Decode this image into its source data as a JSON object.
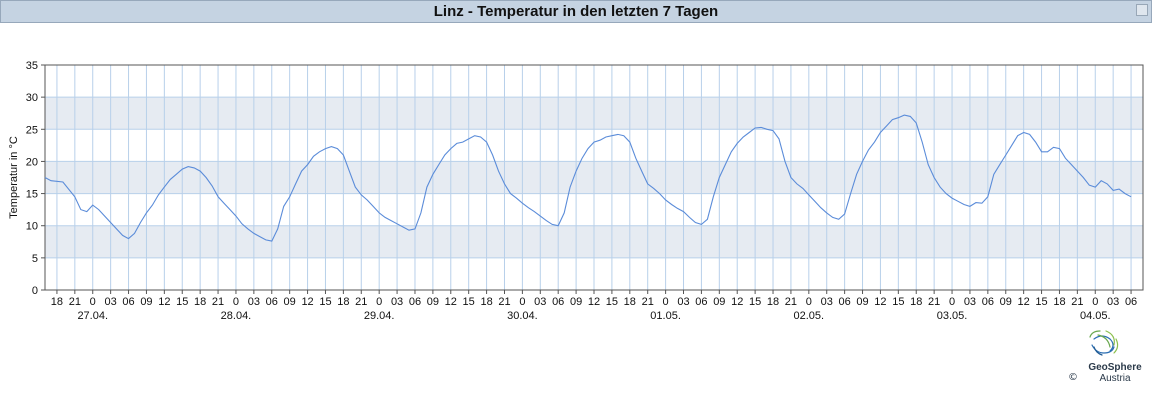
{
  "window": {
    "title": "Linz - Temperatur in den letzten 7 Tagen"
  },
  "branding": {
    "logo_icon": "geosphere-logo-icon",
    "name": "GeoSphere",
    "sub": "Austria",
    "copyright": "©"
  },
  "colors": {
    "line": "#5b8cd9",
    "band": "#e6ebf2",
    "grid": "#b8d0ea",
    "title_bg": "#c5d3e2"
  },
  "chart_data": {
    "type": "line",
    "title": "Linz - Temperatur in den letzten 7 Tagen",
    "ylabel": "Temperatur in °C",
    "xlabel": "",
    "ylim": [
      0,
      35
    ],
    "yticks": [
      0,
      5,
      10,
      15,
      20,
      25,
      30,
      35
    ],
    "grid": true,
    "x_unit": "hours",
    "xlim": [
      "26.04. 16:00",
      "04.05. 08:00"
    ],
    "hour_tick_labels": [
      "18",
      "21",
      "0",
      "03",
      "06",
      "09",
      "12",
      "15",
      "18",
      "21",
      "0",
      "03",
      "06",
      "09",
      "12",
      "15",
      "18",
      "21",
      "0",
      "03",
      "06",
      "09",
      "12",
      "15",
      "18",
      "21",
      "0",
      "03",
      "06",
      "09",
      "12",
      "15",
      "18",
      "21",
      "0",
      "03",
      "06",
      "09",
      "12",
      "15",
      "18",
      "21",
      "0",
      "03",
      "06",
      "09",
      "12",
      "15",
      "18",
      "21",
      "0",
      "03",
      "06",
      "09",
      "12",
      "15",
      "18",
      "21",
      "0",
      "03",
      "06"
    ],
    "date_labels": [
      "27.04.",
      "28.04.",
      "29.04.",
      "30.04.",
      "01.05.",
      "02.05.",
      "03.05.",
      "04.05."
    ],
    "series": [
      {
        "points": [
          [
            "26.04. 16:00",
            17.5
          ],
          [
            "26.04. 17:00",
            17.0
          ],
          [
            "26.04. 19:00",
            16.8
          ],
          [
            "26.04. 21:00",
            14.5
          ],
          [
            "26.04. 22:00",
            12.5
          ],
          [
            "26.04. 23:00",
            12.2
          ],
          [
            "27.04. 00:00",
            13.2
          ],
          [
            "27.04. 01:00",
            12.5
          ],
          [
            "27.04. 02:00",
            11.5
          ],
          [
            "27.04. 03:00",
            10.5
          ],
          [
            "27.04. 05:00",
            8.5
          ],
          [
            "27.04. 06:00",
            8.0
          ],
          [
            "27.04. 07:00",
            8.8
          ],
          [
            "27.04. 08:00",
            10.5
          ],
          [
            "27.04. 09:00",
            12.0
          ],
          [
            "27.04. 10:00",
            13.2
          ],
          [
            "27.04. 11:00",
            14.8
          ],
          [
            "27.04. 12:00",
            16.0
          ],
          [
            "27.04. 13:00",
            17.2
          ],
          [
            "27.04. 14:00",
            18.0
          ],
          [
            "27.04. 15:00",
            18.8
          ],
          [
            "27.04. 16:00",
            19.2
          ],
          [
            "27.04. 17:00",
            19.0
          ],
          [
            "27.04. 18:00",
            18.5
          ],
          [
            "27.04. 19:00",
            17.5
          ],
          [
            "27.04. 20:00",
            16.2
          ],
          [
            "27.04. 21:00",
            14.5
          ],
          [
            "27.04. 22:00",
            13.5
          ],
          [
            "27.04. 23:00",
            12.5
          ],
          [
            "28.04. 00:00",
            11.5
          ],
          [
            "28.04. 01:00",
            10.3
          ],
          [
            "28.04. 02:00",
            9.5
          ],
          [
            "28.04. 03:00",
            8.8
          ],
          [
            "28.04. 04:00",
            8.3
          ],
          [
            "28.04. 05:00",
            7.8
          ],
          [
            "28.04. 06:00",
            7.6
          ],
          [
            "28.04. 07:00",
            9.5
          ],
          [
            "28.04. 08:00",
            13.0
          ],
          [
            "28.04. 09:00",
            14.5
          ],
          [
            "28.04. 10:00",
            16.5
          ],
          [
            "28.04. 11:00",
            18.5
          ],
          [
            "28.04. 12:00",
            19.5
          ],
          [
            "28.04. 13:00",
            20.8
          ],
          [
            "28.04. 14:00",
            21.5
          ],
          [
            "28.04. 15:00",
            22.0
          ],
          [
            "28.04. 16:00",
            22.3
          ],
          [
            "28.04. 17:00",
            22.0
          ],
          [
            "28.04. 18:00",
            21.0
          ],
          [
            "28.04. 19:00",
            18.5
          ],
          [
            "28.04. 20:00",
            16.0
          ],
          [
            "28.04. 21:00",
            14.8
          ],
          [
            "28.04. 22:00",
            14.0
          ],
          [
            "28.04. 23:00",
            13.0
          ],
          [
            "29.04. 00:00",
            12.0
          ],
          [
            "29.04. 01:00",
            11.3
          ],
          [
            "29.04. 02:00",
            10.8
          ],
          [
            "29.04. 03:00",
            10.3
          ],
          [
            "29.04. 04:00",
            9.8
          ],
          [
            "29.04. 05:00",
            9.3
          ],
          [
            "29.04. 06:00",
            9.5
          ],
          [
            "29.04. 07:00",
            12.0
          ],
          [
            "29.04. 08:00",
            16.0
          ],
          [
            "29.04. 09:00",
            18.0
          ],
          [
            "29.04. 10:00",
            19.5
          ],
          [
            "29.04. 11:00",
            21.0
          ],
          [
            "29.04. 12:00",
            22.0
          ],
          [
            "29.04. 13:00",
            22.8
          ],
          [
            "29.04. 14:00",
            23.0
          ],
          [
            "29.04. 15:00",
            23.5
          ],
          [
            "29.04. 16:00",
            24.0
          ],
          [
            "29.04. 17:00",
            23.8
          ],
          [
            "29.04. 18:00",
            23.0
          ],
          [
            "29.04. 19:00",
            21.0
          ],
          [
            "29.04. 20:00",
            18.5
          ],
          [
            "29.04. 21:00",
            16.5
          ],
          [
            "29.04. 22:00",
            15.0
          ],
          [
            "29.04. 23:00",
            14.3
          ],
          [
            "30.04. 00:00",
            13.5
          ],
          [
            "30.04. 01:00",
            12.8
          ],
          [
            "30.04. 02:00",
            12.2
          ],
          [
            "30.04. 03:00",
            11.5
          ],
          [
            "30.04. 04:00",
            10.8
          ],
          [
            "30.04. 05:00",
            10.2
          ],
          [
            "30.04. 06:00",
            10.0
          ],
          [
            "30.04. 07:00",
            12.0
          ],
          [
            "30.04. 08:00",
            16.0
          ],
          [
            "30.04. 09:00",
            18.5
          ],
          [
            "30.04. 10:00",
            20.5
          ],
          [
            "30.04. 11:00",
            22.0
          ],
          [
            "30.04. 12:00",
            23.0
          ],
          [
            "30.04. 13:00",
            23.3
          ],
          [
            "30.04. 14:00",
            23.8
          ],
          [
            "30.04. 15:00",
            24.0
          ],
          [
            "30.04. 16:00",
            24.2
          ],
          [
            "30.04. 17:00",
            24.0
          ],
          [
            "30.04. 18:00",
            23.0
          ],
          [
            "30.04. 19:00",
            20.5
          ],
          [
            "30.04. 20:00",
            18.5
          ],
          [
            "30.04. 21:00",
            16.5
          ],
          [
            "30.04. 22:00",
            15.8
          ],
          [
            "30.04. 23:00",
            15.0
          ],
          [
            "01.05. 00:00",
            14.0
          ],
          [
            "01.05. 01:00",
            13.3
          ],
          [
            "01.05. 02:00",
            12.7
          ],
          [
            "01.05. 03:00",
            12.2
          ],
          [
            "01.05. 04:00",
            11.3
          ],
          [
            "01.05. 05:00",
            10.5
          ],
          [
            "01.05. 06:00",
            10.2
          ],
          [
            "01.05. 07:00",
            11.0
          ],
          [
            "01.05. 08:00",
            14.5
          ],
          [
            "01.05. 09:00",
            17.5
          ],
          [
            "01.05. 10:00",
            19.5
          ],
          [
            "01.05. 11:00",
            21.5
          ],
          [
            "01.05. 12:00",
            22.8
          ],
          [
            "01.05. 13:00",
            23.8
          ],
          [
            "01.05. 14:00",
            24.5
          ],
          [
            "01.05. 15:00",
            25.2
          ],
          [
            "01.05. 16:00",
            25.3
          ],
          [
            "01.05. 17:00",
            25.0
          ],
          [
            "01.05. 18:00",
            24.8
          ],
          [
            "01.05. 19:00",
            23.5
          ],
          [
            "01.05. 20:00",
            20.0
          ],
          [
            "01.05. 21:00",
            17.5
          ],
          [
            "01.05. 22:00",
            16.5
          ],
          [
            "01.05. 23:00",
            15.8
          ],
          [
            "02.05. 00:00",
            14.8
          ],
          [
            "02.05. 01:00",
            13.8
          ],
          [
            "02.05. 02:00",
            12.8
          ],
          [
            "02.05. 03:00",
            12.0
          ],
          [
            "02.05. 04:00",
            11.3
          ],
          [
            "02.05. 05:00",
            11.0
          ],
          [
            "02.05. 06:00",
            11.8
          ],
          [
            "02.05. 07:00",
            15.0
          ],
          [
            "02.05. 08:00",
            18.0
          ],
          [
            "02.05. 09:00",
            20.0
          ],
          [
            "02.05. 10:00",
            21.8
          ],
          [
            "02.05. 11:00",
            23.0
          ],
          [
            "02.05. 12:00",
            24.5
          ],
          [
            "02.05. 13:00",
            25.5
          ],
          [
            "02.05. 14:00",
            26.5
          ],
          [
            "02.05. 15:00",
            26.8
          ],
          [
            "02.05. 16:00",
            27.2
          ],
          [
            "02.05. 17:00",
            27.0
          ],
          [
            "02.05. 18:00",
            26.0
          ],
          [
            "02.05. 19:00",
            23.0
          ],
          [
            "02.05. 20:00",
            19.5
          ],
          [
            "02.05. 21:00",
            17.5
          ],
          [
            "02.05. 22:00",
            16.0
          ],
          [
            "02.05. 23:00",
            15.0
          ],
          [
            "03.05. 00:00",
            14.3
          ],
          [
            "03.05. 01:00",
            13.8
          ],
          [
            "03.05. 02:00",
            13.3
          ],
          [
            "03.05. 03:00",
            13.0
          ],
          [
            "03.05. 04:00",
            13.6
          ],
          [
            "03.05. 05:00",
            13.5
          ],
          [
            "03.05. 06:00",
            14.5
          ],
          [
            "03.05. 07:00",
            18.0
          ],
          [
            "03.05. 08:00",
            19.5
          ],
          [
            "03.05. 09:00",
            21.0
          ],
          [
            "03.05. 10:00",
            22.5
          ],
          [
            "03.05. 11:00",
            24.0
          ],
          [
            "03.05. 12:00",
            24.5
          ],
          [
            "03.05. 13:00",
            24.2
          ],
          [
            "03.05. 14:00",
            23.0
          ],
          [
            "03.05. 15:00",
            21.5
          ],
          [
            "03.05. 16:00",
            21.5
          ],
          [
            "03.05. 17:00",
            22.2
          ],
          [
            "03.05. 18:00",
            22.0
          ],
          [
            "03.05. 19:00",
            20.5
          ],
          [
            "03.05. 20:00",
            19.5
          ],
          [
            "03.05. 21:00",
            18.5
          ],
          [
            "03.05. 22:00",
            17.5
          ],
          [
            "03.05. 23:00",
            16.3
          ],
          [
            "04.05. 00:00",
            16.0
          ],
          [
            "04.05. 01:00",
            17.0
          ],
          [
            "04.05. 02:00",
            16.5
          ],
          [
            "04.05. 03:00",
            15.5
          ],
          [
            "04.05. 04:00",
            15.7
          ],
          [
            "04.05. 05:00",
            15.0
          ],
          [
            "04.05. 06:00",
            14.5
          ]
        ]
      }
    ]
  }
}
